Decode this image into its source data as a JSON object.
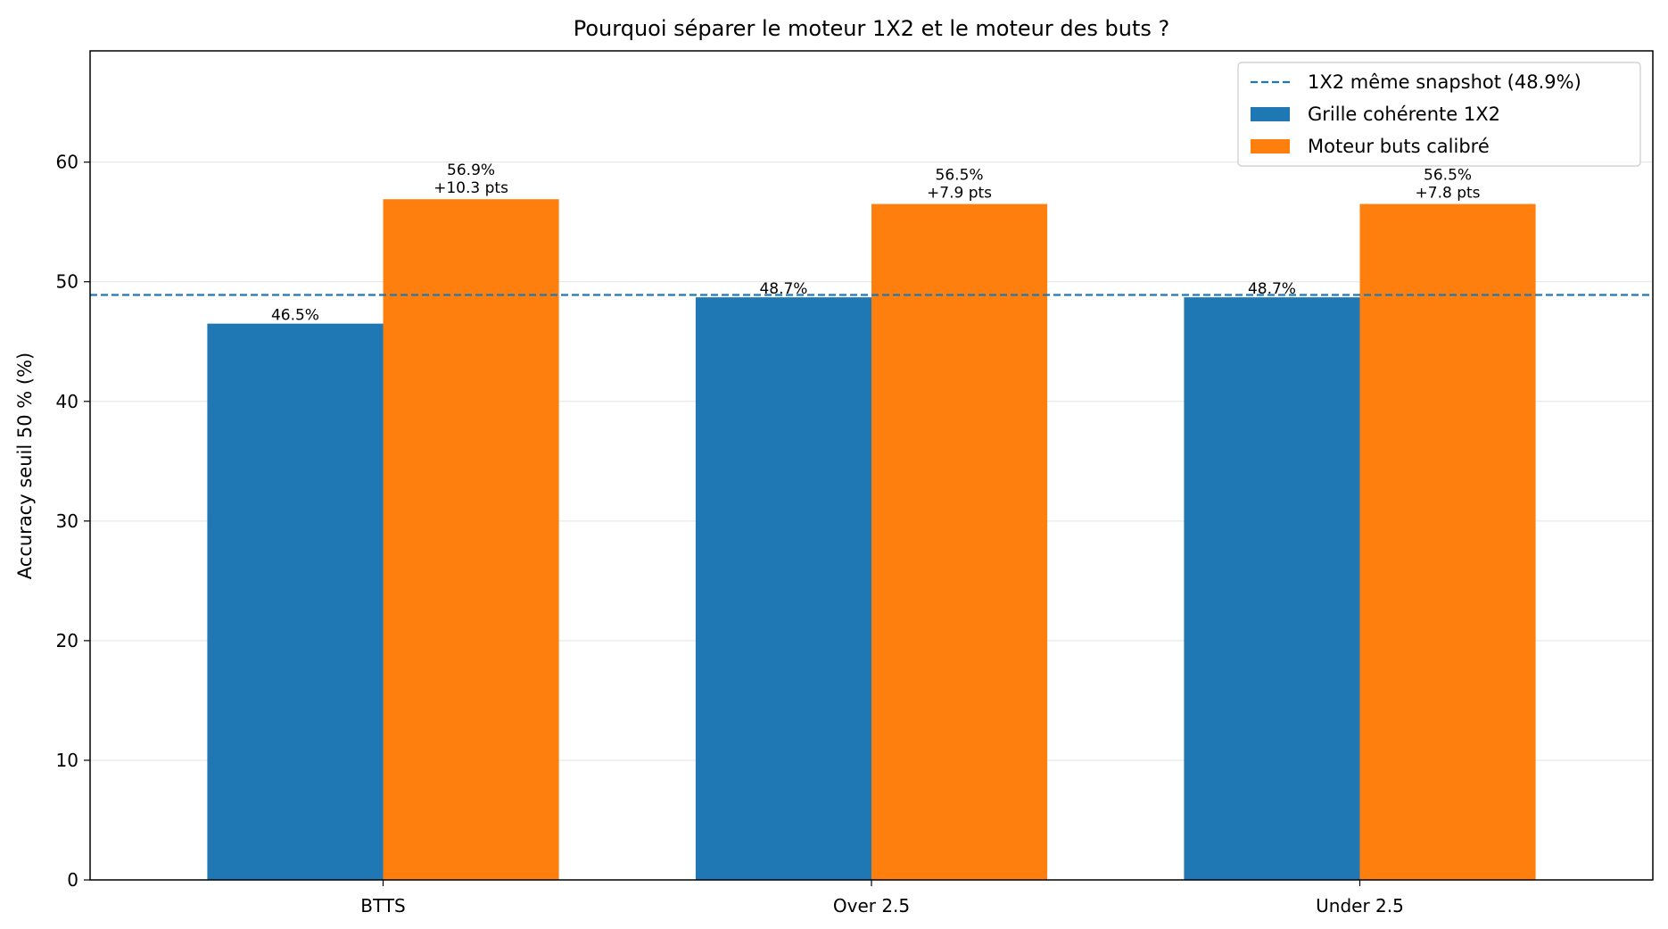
{
  "chart_data": {
    "type": "bar",
    "title": "Pourquoi séparer le moteur 1X2 et le moteur des buts ?",
    "xlabel": "",
    "ylabel": "Accuracy seuil 50 % (%)",
    "categories": [
      "BTTS",
      "Over 2.5",
      "Under 2.5"
    ],
    "ylim": [
      0,
      69.3
    ],
    "yticks": [
      0,
      10,
      20,
      30,
      40,
      50,
      60
    ],
    "grid": "horizontal",
    "legend_position": "top-right",
    "series": [
      {
        "name": "Grille cohérente 1X2",
        "color": "#1f77b4",
        "values": [
          46.5,
          48.7,
          48.7
        ],
        "labels": [
          "46.5%",
          "48.7%",
          "48.7%"
        ]
      },
      {
        "name": "Moteur buts calibré",
        "color": "#ff7f0e",
        "values": [
          56.9,
          56.5,
          56.5
        ],
        "labels": [
          "56.9%",
          "56.5%",
          "56.5%"
        ],
        "deltas": [
          "+10.3 pts",
          "+7.9 pts",
          "+7.8 pts"
        ]
      }
    ],
    "reference_line": {
      "name": "1X2 même snapshot (48.9%)",
      "value": 48.9,
      "color": "#1f77b4",
      "style": "dashed"
    }
  }
}
